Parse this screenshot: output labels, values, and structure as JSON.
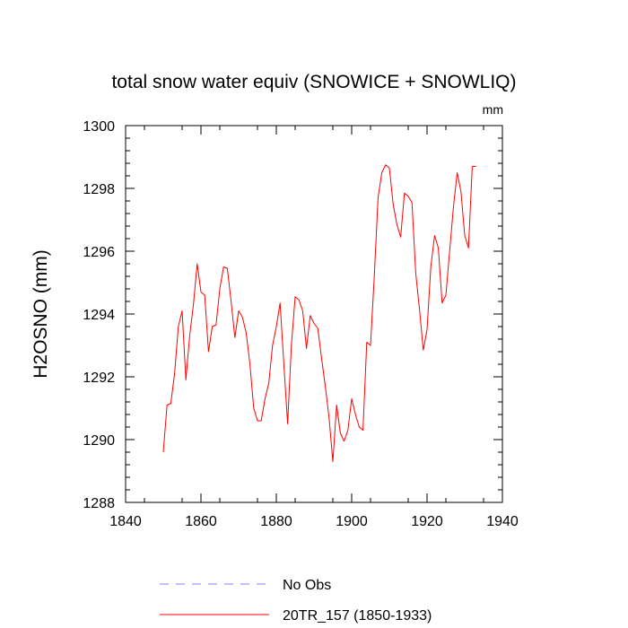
{
  "chart_data": {
    "type": "line",
    "title": "total snow water equiv (SNOWICE + SNOWLIQ)",
    "units": "mm",
    "xlabel": "",
    "ylabel": "H2OSNO  (mm)",
    "xlim": [
      1840,
      1940
    ],
    "ylim": [
      1288,
      1300
    ],
    "xticks": [
      1840,
      1860,
      1880,
      1900,
      1920,
      1940
    ],
    "yticks": [
      1288,
      1290,
      1292,
      1294,
      1296,
      1298,
      1300
    ],
    "xtick_labels": [
      "1840",
      "1860",
      "1880",
      "1900",
      "1920",
      "1940"
    ],
    "ytick_labels": [
      "1288",
      "1290",
      "1292",
      "1294",
      "1296",
      "1298",
      "1300"
    ],
    "grid": false,
    "series": [
      {
        "name": "20TR_157 (1850-1933)",
        "color": "#ff0000",
        "style": "solid",
        "x": [
          1850,
          1851,
          1852,
          1853,
          1854,
          1855,
          1856,
          1857,
          1858,
          1859,
          1860,
          1861,
          1862,
          1863,
          1864,
          1865,
          1866,
          1867,
          1868,
          1869,
          1870,
          1871,
          1872,
          1873,
          1874,
          1875,
          1876,
          1877,
          1878,
          1879,
          1880,
          1881,
          1882,
          1883,
          1884,
          1885,
          1886,
          1887,
          1888,
          1889,
          1890,
          1891,
          1892,
          1893,
          1894,
          1895,
          1896,
          1897,
          1898,
          1899,
          1900,
          1901,
          1902,
          1903,
          1904,
          1905,
          1906,
          1907,
          1908,
          1909,
          1910,
          1911,
          1912,
          1913,
          1914,
          1915,
          1916,
          1917,
          1918,
          1919,
          1920,
          1921,
          1922,
          1923,
          1924,
          1925,
          1926,
          1927,
          1928,
          1929,
          1930,
          1931,
          1932,
          1933
        ],
        "values": [
          1289.6,
          1291.1,
          1291.15,
          1292.1,
          1293.6,
          1294.1,
          1291.9,
          1293.3,
          1294.3,
          1295.6,
          1294.7,
          1294.6,
          1292.8,
          1293.6,
          1293.65,
          1294.8,
          1295.5,
          1295.45,
          1294.4,
          1293.25,
          1294.1,
          1293.9,
          1293.4,
          1292.4,
          1291.0,
          1290.6,
          1290.6,
          1291.3,
          1291.8,
          1293.0,
          1293.6,
          1294.35,
          1292.4,
          1290.5,
          1293.0,
          1294.55,
          1294.45,
          1294.1,
          1292.9,
          1293.95,
          1293.7,
          1293.55,
          1292.6,
          1291.7,
          1290.7,
          1289.3,
          1291.1,
          1290.2,
          1289.95,
          1290.3,
          1291.3,
          1290.8,
          1290.4,
          1290.3,
          1293.1,
          1293.0,
          1295.2,
          1297.7,
          1298.5,
          1298.75,
          1298.65,
          1297.5,
          1296.85,
          1296.45,
          1297.85,
          1297.75,
          1297.55,
          1295.3,
          1294.15,
          1292.85,
          1293.5,
          1295.5,
          1296.5,
          1296.1,
          1294.35,
          1294.6,
          1296.0,
          1297.4,
          1298.5,
          1297.9,
          1296.5,
          1296.1,
          1298.7,
          1298.7
        ]
      }
    ],
    "legend": {
      "position": "bottom-center",
      "entries": [
        {
          "label": "No Obs",
          "color": "#8080ff",
          "style": "dashed"
        },
        {
          "label": "20TR_157 (1850-1933)",
          "color": "#ff0000",
          "style": "solid"
        }
      ]
    }
  }
}
